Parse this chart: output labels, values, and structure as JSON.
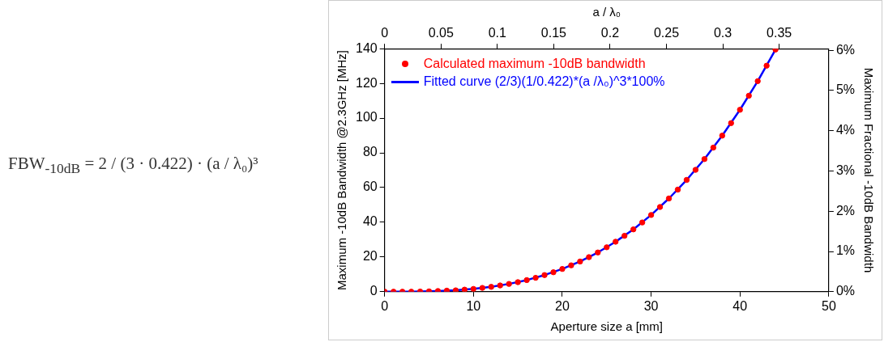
{
  "chart_data": {
    "type": "scatter",
    "xlabel": "Aperture size a [mm]",
    "ylabel": "Maximum -10dB Bandwidth @2.3GHz [MHz]",
    "y2label": "Maximum Fractional -10dB Bandwidth",
    "x2label": "a / λ₀",
    "xlim": [
      0,
      50
    ],
    "xticks": [
      0,
      10,
      20,
      30,
      40,
      50
    ],
    "ylim": [
      0,
      140
    ],
    "yticks": [
      0,
      20,
      40,
      60,
      80,
      100,
      120,
      140
    ],
    "x2lim": [
      0,
      0.394
    ],
    "x2ticks": [
      0,
      0.05,
      0.1,
      0.15,
      0.2,
      0.25,
      0.3,
      0.35
    ],
    "y2lim": [
      0,
      6.04
    ],
    "y2ticks": [
      {
        "value": 0,
        "label": "0%"
      },
      {
        "value": 1,
        "label": "1%"
      },
      {
        "value": 2,
        "label": "2%"
      },
      {
        "value": 3,
        "label": "3%"
      },
      {
        "value": 4,
        "label": "4%"
      },
      {
        "value": 5,
        "label": "5%"
      },
      {
        "value": 6,
        "label": "6%"
      }
    ],
    "legend": "top left",
    "grid": false,
    "marker": "circle",
    "annotations": [
      "FBW$_{-10dB}$ = 2 / (3 · 0.422) · (a / λ₀)³"
    ],
    "series": [
      {
        "name": "Calculated maximum -10dB bandwidth",
        "color": "#ff0000",
        "type": "scatter",
        "x": [
          0,
          1,
          2,
          3,
          4,
          5,
          6,
          7,
          8,
          9,
          10,
          11,
          12,
          13,
          14,
          15,
          16,
          17,
          18,
          19,
          20,
          21,
          22,
          23,
          24,
          25,
          26,
          27,
          28,
          29,
          30,
          31,
          32,
          33,
          34,
          35,
          36,
          37,
          38,
          39,
          40,
          41,
          42,
          43,
          44
        ],
        "values": [
          0,
          0,
          0,
          0,
          0.1,
          0.2,
          0.4,
          0.6,
          0.8,
          1.2,
          1.6,
          2.2,
          2.8,
          3.6,
          4.5,
          5.5,
          6.7,
          8.0,
          9.6,
          11.2,
          13.1,
          15.2,
          17.4,
          19.9,
          22.6,
          25.6,
          28.8,
          32.2,
          35.9,
          39.9,
          44.2,
          48.8,
          53.7,
          58.8,
          64.4,
          70.2,
          76.4,
          83.0,
          89.9,
          97.1,
          104.8,
          112.9,
          121.3,
          130.2,
          139.5
        ]
      },
      {
        "name": "Fitted curve  (2/3)(1/0.422)*(a /λ₀)^3*100%",
        "color": "#0000ff",
        "type": "line",
        "marker": "none",
        "x": [
          0,
          2,
          4,
          6,
          8,
          10,
          12,
          14,
          16,
          18,
          20,
          22,
          24,
          26,
          28,
          30,
          32,
          34,
          36,
          38,
          40,
          42,
          44
        ],
        "values": [
          0,
          0,
          0.1,
          0.4,
          0.8,
          1.6,
          2.8,
          4.5,
          6.7,
          9.6,
          13.1,
          17.4,
          22.6,
          28.8,
          35.9,
          44.2,
          53.7,
          64.4,
          76.4,
          89.9,
          104.8,
          121.3,
          139.5
        ]
      }
    ]
  }
}
